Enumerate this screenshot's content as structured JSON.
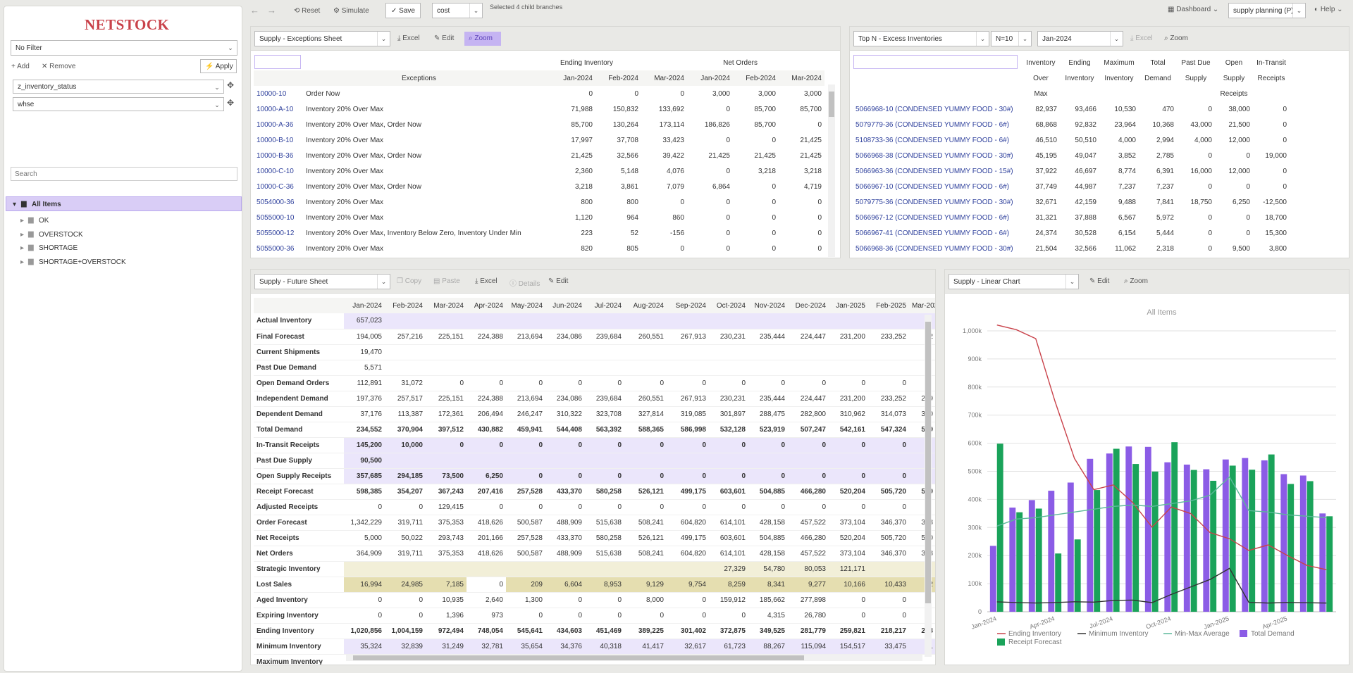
{
  "topbar": {
    "reset": "Reset",
    "simulate": "Simulate",
    "save": "Save",
    "cost_select": "cost",
    "status": "Selected 4 child branches",
    "dashboard": "Dashboard",
    "planning_select": "supply planning (P)",
    "help": "Help"
  },
  "sidebar": {
    "logo": "NETSTOCK",
    "filter": "No Filter",
    "add": "Add",
    "remove": "Remove",
    "apply": "Apply",
    "filters": [
      "z_inventory_status",
      "whse"
    ],
    "search_placeholder": "Search",
    "tree_root": "All Items",
    "tree_children": [
      "OK",
      "OVERSTOCK",
      "SHORTAGE",
      "SHORTAGE+OVERSTOCK"
    ]
  },
  "exceptions": {
    "sheet": "Supply - Exceptions Sheet",
    "excel": "Excel",
    "edit": "Edit",
    "zoom": "Zoom",
    "group1": "Ending Inventory",
    "group2": "Net Orders",
    "col_exceptions": "Exceptions",
    "months": [
      "Jan-2024",
      "Feb-2024",
      "Mar-2024",
      "Jan-2024",
      "Feb-2024",
      "Mar-2024"
    ],
    "rows": [
      [
        "10000-10",
        "Order Now",
        "0",
        "0",
        "0",
        "3,000",
        "3,000",
        "3,000"
      ],
      [
        "10000-A-10",
        "Inventory 20% Over Max",
        "71,988",
        "150,832",
        "133,692",
        "0",
        "85,700",
        "85,700"
      ],
      [
        "10000-A-36",
        "Inventory 20% Over Max, Order Now",
        "85,700",
        "130,264",
        "173,114",
        "186,826",
        "85,700",
        "0"
      ],
      [
        "10000-B-10",
        "Inventory 20% Over Max",
        "17,997",
        "37,708",
        "33,423",
        "0",
        "0",
        "21,425"
      ],
      [
        "10000-B-36",
        "Inventory 20% Over Max, Order Now",
        "21,425",
        "32,566",
        "39,422",
        "21,425",
        "21,425",
        "21,425"
      ],
      [
        "10000-C-10",
        "Inventory 20% Over Max",
        "2,360",
        "5,148",
        "4,076",
        "0",
        "3,218",
        "3,218"
      ],
      [
        "10000-C-36",
        "Inventory 20% Over Max, Order Now",
        "3,218",
        "3,861",
        "7,079",
        "6,864",
        "0",
        "4,719"
      ],
      [
        "5054000-36",
        "Inventory 20% Over Max",
        "800",
        "800",
        "0",
        "0",
        "0",
        "0"
      ],
      [
        "5055000-10",
        "Inventory 20% Over Max",
        "1,120",
        "964",
        "860",
        "0",
        "0",
        "0"
      ],
      [
        "5055000-12",
        "Inventory 20% Over Max, Inventory Below Zero, Inventory Under Min",
        "223",
        "52",
        "-156",
        "0",
        "0",
        "0"
      ],
      [
        "5055000-36",
        "Inventory 20% Over Max",
        "820",
        "805",
        "0",
        "0",
        "0",
        "0"
      ]
    ]
  },
  "topn": {
    "sheet": "Top N - Excess Inventories",
    "n": "N=10",
    "month": "Jan-2024",
    "excel": "Excel",
    "zoom": "Zoom",
    "headers": [
      [
        "Inventory",
        "Over",
        "Max"
      ],
      [
        "Ending",
        "Inventory",
        ""
      ],
      [
        "Maximum",
        "Inventory",
        ""
      ],
      [
        "Total",
        "Demand",
        ""
      ],
      [
        "Past Due",
        "Supply",
        ""
      ],
      [
        "Open",
        "Supply",
        "Receipts"
      ],
      [
        "In-Transit",
        "Receipts",
        ""
      ]
    ],
    "rows": [
      [
        "5066968-10 (CONDENSED YUMMY FOOD - 30#)",
        "82,937",
        "93,466",
        "10,530",
        "470",
        "0",
        "38,000",
        "0"
      ],
      [
        "5079779-36 (CONDENSED YUMMY FOOD - 6#)",
        "68,868",
        "92,832",
        "23,964",
        "10,368",
        "43,000",
        "21,500",
        "0"
      ],
      [
        "5108733-36 (CONDENSED YUMMY FOOD - 6#)",
        "46,510",
        "50,510",
        "4,000",
        "2,994",
        "4,000",
        "12,000",
        "0"
      ],
      [
        "5066968-38 (CONDENSED YUMMY FOOD - 30#)",
        "45,195",
        "49,047",
        "3,852",
        "2,785",
        "0",
        "0",
        "19,000"
      ],
      [
        "5066963-36 (CONDENSED YUMMY FOOD - 15#)",
        "37,922",
        "46,697",
        "8,774",
        "6,391",
        "16,000",
        "12,000",
        "0"
      ],
      [
        "5066967-10 (CONDENSED YUMMY FOOD - 6#)",
        "37,749",
        "44,987",
        "7,237",
        "7,237",
        "0",
        "0",
        "0"
      ],
      [
        "5079775-36 (CONDENSED YUMMY FOOD - 30#)",
        "32,671",
        "42,159",
        "9,488",
        "7,841",
        "18,750",
        "6,250",
        "-12,500"
      ],
      [
        "5066967-12 (CONDENSED YUMMY FOOD - 6#)",
        "31,321",
        "37,888",
        "6,567",
        "5,972",
        "0",
        "0",
        "18,700"
      ],
      [
        "5066967-41 (CONDENSED YUMMY FOOD - 6#)",
        "24,374",
        "30,528",
        "6,154",
        "5,444",
        "0",
        "0",
        "15,300"
      ],
      [
        "5066968-36 (CONDENSED YUMMY FOOD - 30#)",
        "21,504",
        "32,566",
        "11,062",
        "2,318",
        "0",
        "9,500",
        "3,800"
      ]
    ]
  },
  "future": {
    "sheet": "Supply - Future Sheet",
    "copy": "Copy",
    "paste": "Paste",
    "excel": "Excel",
    "details": "Details",
    "edit": "Edit",
    "months": [
      "Jan-2024",
      "Feb-2024",
      "Mar-2024",
      "Apr-2024",
      "May-2024",
      "Jun-2024",
      "Jul-2024",
      "Aug-2024",
      "Sep-2024",
      "Oct-2024",
      "Nov-2024",
      "Dec-2024",
      "Jan-2025",
      "Feb-2025",
      "Mar-202"
    ],
    "rows": [
      {
        "label": "Actual Inventory",
        "bg": "purple",
        "bold": false,
        "v": [
          "657,023",
          "",
          "",
          "",
          "",
          "",
          "",
          "",
          "",
          "",
          "",
          "",
          "",
          "",
          ""
        ]
      },
      {
        "label": "Final Forecast",
        "bg": "",
        "bold": false,
        "v": [
          "194,005",
          "257,216",
          "225,151",
          "224,388",
          "213,694",
          "234,086",
          "239,684",
          "260,551",
          "267,913",
          "230,231",
          "235,444",
          "224,447",
          "231,200",
          "233,252",
          "22"
        ]
      },
      {
        "label": "Current Shipments",
        "bg": "",
        "bold": false,
        "v": [
          "19,470",
          "",
          "",
          "",
          "",
          "",
          "",
          "",
          "",
          "",
          "",
          "",
          "",
          "",
          ""
        ]
      },
      {
        "label": "Past Due Demand",
        "bg": "",
        "bold": false,
        "v": [
          "5,571",
          "",
          "",
          "",
          "",
          "",
          "",
          "",
          "",
          "",
          "",
          "",
          "",
          "",
          ""
        ]
      },
      {
        "label": "Open Demand Orders",
        "bg": "",
        "bold": false,
        "v": [
          "112,891",
          "31,072",
          "0",
          "0",
          "0",
          "0",
          "0",
          "0",
          "0",
          "0",
          "0",
          "0",
          "0",
          "0",
          ""
        ]
      },
      {
        "label": "Independent Demand",
        "bg": "",
        "bold": false,
        "v": [
          "197,376",
          "257,517",
          "225,151",
          "224,388",
          "213,694",
          "234,086",
          "239,684",
          "260,551",
          "267,913",
          "230,231",
          "235,444",
          "224,447",
          "231,200",
          "233,252",
          "229"
        ]
      },
      {
        "label": "Dependent Demand",
        "bg": "",
        "bold": false,
        "v": [
          "37,176",
          "113,387",
          "172,361",
          "206,494",
          "246,247",
          "310,322",
          "323,708",
          "327,814",
          "319,085",
          "301,897",
          "288,475",
          "282,800",
          "310,962",
          "314,073",
          "310"
        ]
      },
      {
        "label": "Total Demand",
        "bg": "",
        "bold": true,
        "v": [
          "234,552",
          "370,904",
          "397,512",
          "430,882",
          "459,941",
          "544,408",
          "563,392",
          "588,365",
          "586,998",
          "532,128",
          "523,919",
          "507,247",
          "542,161",
          "547,324",
          "539"
        ]
      },
      {
        "label": "In-Transit Receipts",
        "bg": "purple",
        "bold": true,
        "v": [
          "145,200",
          "10,000",
          "0",
          "0",
          "0",
          "0",
          "0",
          "0",
          "0",
          "0",
          "0",
          "0",
          "0",
          "0",
          ""
        ]
      },
      {
        "label": "Past Due Supply",
        "bg": "purple",
        "bold": true,
        "v": [
          "90,500",
          "",
          "",
          "",
          "",
          "",
          "",
          "",
          "",
          "",
          "",
          "",
          "",
          "",
          ""
        ]
      },
      {
        "label": "Open Supply Receipts",
        "bg": "purple",
        "bold": true,
        "v": [
          "357,685",
          "294,185",
          "73,500",
          "6,250",
          "0",
          "0",
          "0",
          "0",
          "0",
          "0",
          "0",
          "0",
          "0",
          "0",
          ""
        ]
      },
      {
        "label": "Receipt Forecast",
        "bg": "",
        "bold": true,
        "v": [
          "598,385",
          "354,207",
          "367,243",
          "207,416",
          "257,528",
          "433,370",
          "580,258",
          "526,121",
          "499,175",
          "603,601",
          "504,885",
          "466,280",
          "520,204",
          "505,720",
          "560"
        ]
      },
      {
        "label": "Adjusted Receipts",
        "bg": "",
        "bold": false,
        "v": [
          "0",
          "0",
          "129,415",
          "0",
          "0",
          "0",
          "0",
          "0",
          "0",
          "0",
          "0",
          "0",
          "0",
          "0",
          ""
        ]
      },
      {
        "label": "Order Forecast",
        "bg": "",
        "bold": false,
        "v": [
          "1,342,229",
          "319,711",
          "375,353",
          "418,626",
          "500,587",
          "488,909",
          "515,638",
          "508,241",
          "604,820",
          "614,101",
          "428,158",
          "457,522",
          "373,104",
          "346,370",
          "358"
        ]
      },
      {
        "label": "Net Receipts",
        "bg": "",
        "bold": false,
        "v": [
          "5,000",
          "50,022",
          "293,743",
          "201,166",
          "257,528",
          "433,370",
          "580,258",
          "526,121",
          "499,175",
          "603,601",
          "504,885",
          "466,280",
          "520,204",
          "505,720",
          "560"
        ]
      },
      {
        "label": "Net Orders",
        "bg": "",
        "bold": false,
        "v": [
          "364,909",
          "319,711",
          "375,353",
          "418,626",
          "500,587",
          "488,909",
          "515,638",
          "508,241",
          "604,820",
          "614,101",
          "428,158",
          "457,522",
          "373,104",
          "346,370",
          "358"
        ]
      },
      {
        "label": "Strategic Inventory",
        "bg": "oliverow",
        "bold": false,
        "v": [
          "",
          "",
          "",
          "",
          "",
          "",
          "",
          "",
          "",
          "27,329",
          "54,780",
          "80,053",
          "121,171",
          "",
          ""
        ]
      },
      {
        "label": "Lost Sales",
        "bg": "olive",
        "bold": false,
        "v": [
          "16,994",
          "24,985",
          "7,185",
          "0",
          "209",
          "6,604",
          "8,953",
          "9,129",
          "9,754",
          "8,259",
          "8,341",
          "9,277",
          "10,166",
          "10,433",
          "12"
        ]
      },
      {
        "label": "Aged Inventory",
        "bg": "",
        "bold": false,
        "v": [
          "0",
          "0",
          "10,935",
          "2,640",
          "1,300",
          "0",
          "0",
          "8,000",
          "0",
          "159,912",
          "185,662",
          "277,898",
          "0",
          "0",
          ""
        ]
      },
      {
        "label": "Expiring Inventory",
        "bg": "",
        "bold": false,
        "v": [
          "0",
          "0",
          "1,396",
          "973",
          "0",
          "0",
          "0",
          "0",
          "0",
          "0",
          "4,315",
          "26,780",
          "0",
          "0",
          ""
        ]
      },
      {
        "label": "Ending Inventory",
        "bg": "",
        "bold": true,
        "v": [
          "1,020,856",
          "1,004,159",
          "972,494",
          "748,054",
          "545,641",
          "434,603",
          "451,469",
          "389,225",
          "301,402",
          "372,875",
          "349,525",
          "281,779",
          "259,821",
          "218,217",
          "238"
        ]
      },
      {
        "label": "Minimum Inventory",
        "bg": "purple",
        "bold": false,
        "v": [
          "35,324",
          "32,839",
          "31,249",
          "32,781",
          "35,654",
          "34,376",
          "40,318",
          "41,417",
          "32,617",
          "61,723",
          "88,267",
          "115,094",
          "154,517",
          "33,475",
          "31"
        ]
      },
      {
        "label": "Maximum Inventory",
        "bg": "",
        "bold": false,
        "v": [
          "",
          "",
          "",
          "",
          "",
          "",
          "",
          "",
          "",
          "",
          "",
          "",
          "",
          "",
          ""
        ]
      }
    ]
  },
  "chartpanel": {
    "sheet": "Supply - Linear Chart",
    "edit": "Edit",
    "zoom": "Zoom"
  },
  "chart_data": {
    "type": "bar",
    "title": "All Items",
    "categories": [
      "Jan-2024",
      "Feb-2024",
      "Mar-2024",
      "Apr-2024",
      "May-2024",
      "Jun-2024",
      "Jul-2024",
      "Aug-2024",
      "Sep-2024",
      "Oct-2024",
      "Nov-2024",
      "Dec-2024",
      "Jan-2025",
      "Feb-2025",
      "Mar-2025",
      "Apr-2025",
      "May-2025",
      "Jun-2025"
    ],
    "tick_labels": [
      "Jan-2024",
      "Apr-2024",
      "Jul-2024",
      "Oct-2024",
      "Jan-2025",
      "Apr-2025"
    ],
    "y_ticks": [
      "0",
      "100k",
      "200k",
      "300k",
      "400k",
      "500k",
      "600k",
      "700k",
      "800k",
      "900k",
      "1,000k"
    ],
    "ylim": [
      0,
      1000000
    ],
    "series": [
      {
        "name": "Ending Inventory",
        "kind": "line",
        "color": "#c9424a",
        "values": [
          1020856,
          1004159,
          972494,
          748054,
          545641,
          434603,
          451469,
          389225,
          301402,
          372875,
          349525,
          281779,
          259821,
          218217,
          238000,
          200000,
          165000,
          150000
        ]
      },
      {
        "name": "Minimum Inventory",
        "kind": "line",
        "color": "#333333",
        "values": [
          35324,
          32839,
          31249,
          32781,
          35654,
          34376,
          40318,
          41417,
          32617,
          61723,
          88267,
          115094,
          154517,
          33475,
          31000,
          33000,
          32000,
          31000
        ]
      },
      {
        "name": "Min-Max Average",
        "kind": "line",
        "color": "#5cb89a",
        "values": [
          305000,
          330000,
          335000,
          345000,
          355000,
          365000,
          375000,
          380000,
          375000,
          385000,
          395000,
          415000,
          480000,
          360000,
          355000,
          345000,
          340000,
          335000
        ]
      },
      {
        "name": "Total Demand",
        "kind": "bar",
        "color": "#8b5ce6",
        "values": [
          234552,
          370904,
          397512,
          430882,
          459941,
          544408,
          563392,
          588365,
          586998,
          532128,
          523919,
          507247,
          542161,
          547324,
          539000,
          490000,
          485000,
          350000
        ]
      },
      {
        "name": "Receipt Forecast",
        "kind": "bar",
        "color": "#1aa35a",
        "values": [
          598385,
          354207,
          367243,
          207416,
          257528,
          433370,
          580258,
          526121,
          499175,
          603601,
          504885,
          466280,
          520204,
          505720,
          560000,
          455000,
          465000,
          340000
        ]
      }
    ]
  }
}
